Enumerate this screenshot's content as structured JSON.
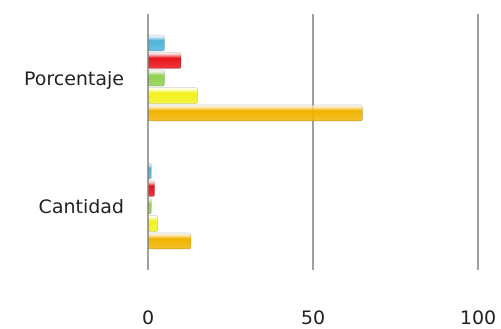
{
  "chart_data": {
    "type": "bar",
    "orientation": "horizontal",
    "categories": [
      "Porcentaje",
      "Cantidad"
    ],
    "series": [
      {
        "values": [
          5,
          1
        ],
        "color": "#4fb3d9"
      },
      {
        "values": [
          10,
          2
        ],
        "color": "#e8141b"
      },
      {
        "values": [
          5,
          1
        ],
        "color": "#8fd14f"
      },
      {
        "values": [
          15,
          3
        ],
        "color": "#f2f21e"
      },
      {
        "values": [
          65,
          13
        ],
        "color": "#f0b400"
      }
    ],
    "xlim": [
      0,
      100
    ],
    "xticks": [
      "0",
      "50",
      "100"
    ],
    "grid": true,
    "legend": "none"
  }
}
